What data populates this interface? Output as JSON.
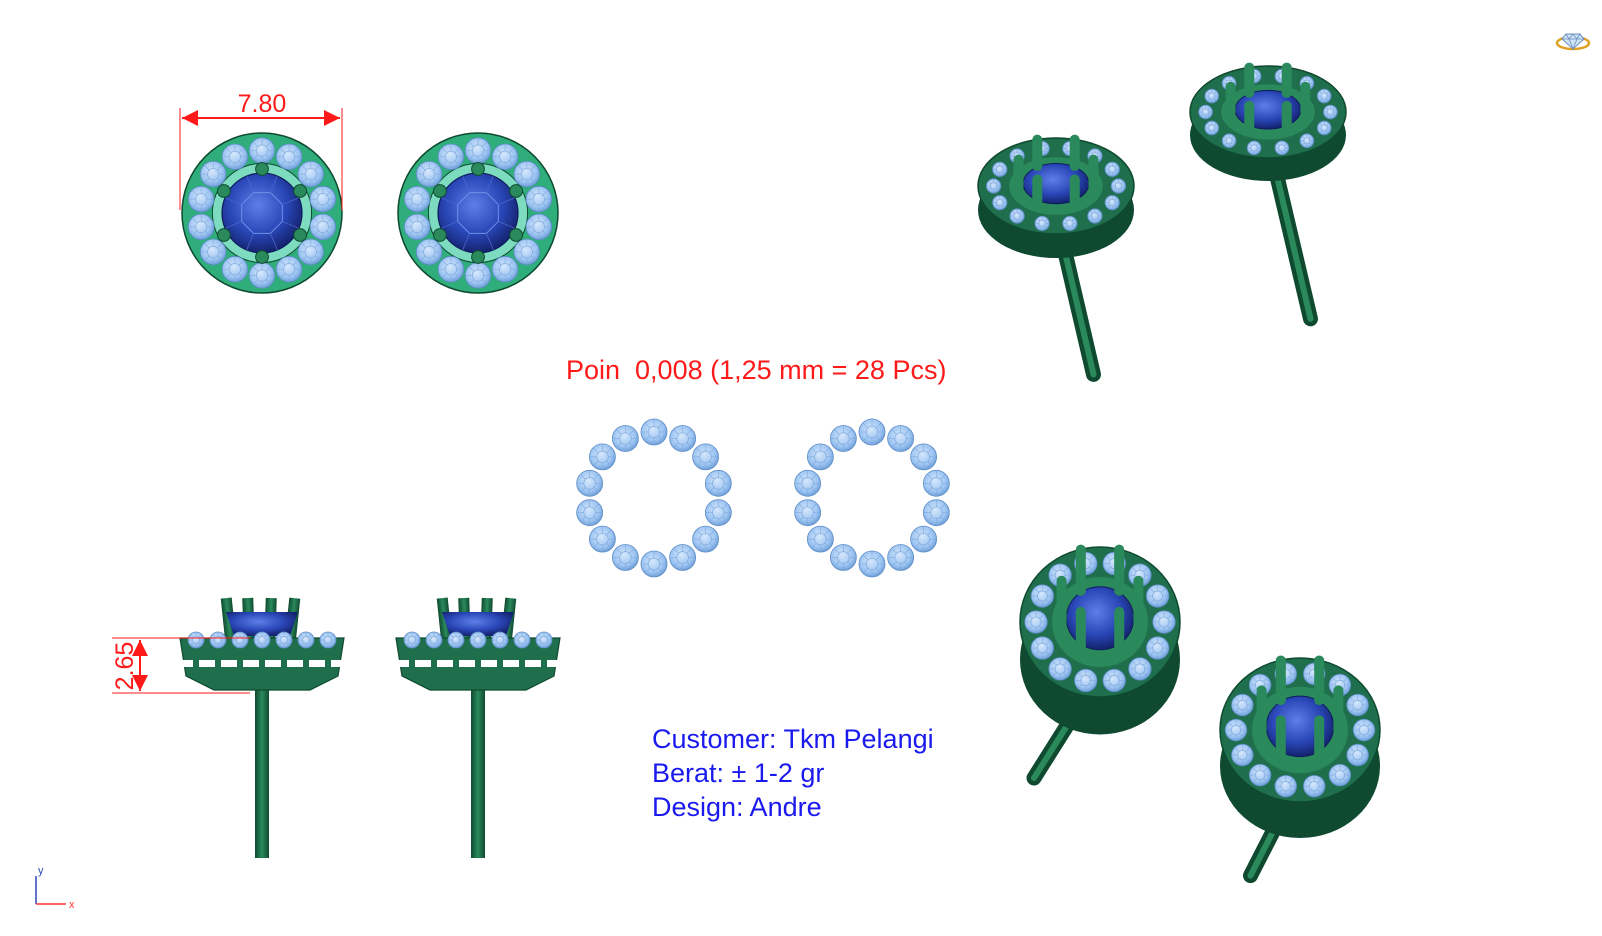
{
  "dimensions": {
    "width_label": "7.80",
    "height_label": "2.65"
  },
  "poin_label": "Poin  0,008 (1,25 mm = 28 Pcs)",
  "info": {
    "customer": "Customer: Tkm Pelangi",
    "berat": "Berat: ± 1-2 gr",
    "design": "Design: Andre"
  },
  "axes": {
    "y": "y",
    "x": "x"
  },
  "colors": {
    "metal": "#1f6e4c",
    "metal_light": "#2fae7c",
    "metal_dark": "#0f4a30",
    "diamond": "#9cc4f2",
    "sapphire": "#2a47b8",
    "dimension": "#ff1a1a",
    "info_text": "#1a1aee"
  },
  "icons": {
    "logo": "diamond-ring-logo-icon"
  }
}
